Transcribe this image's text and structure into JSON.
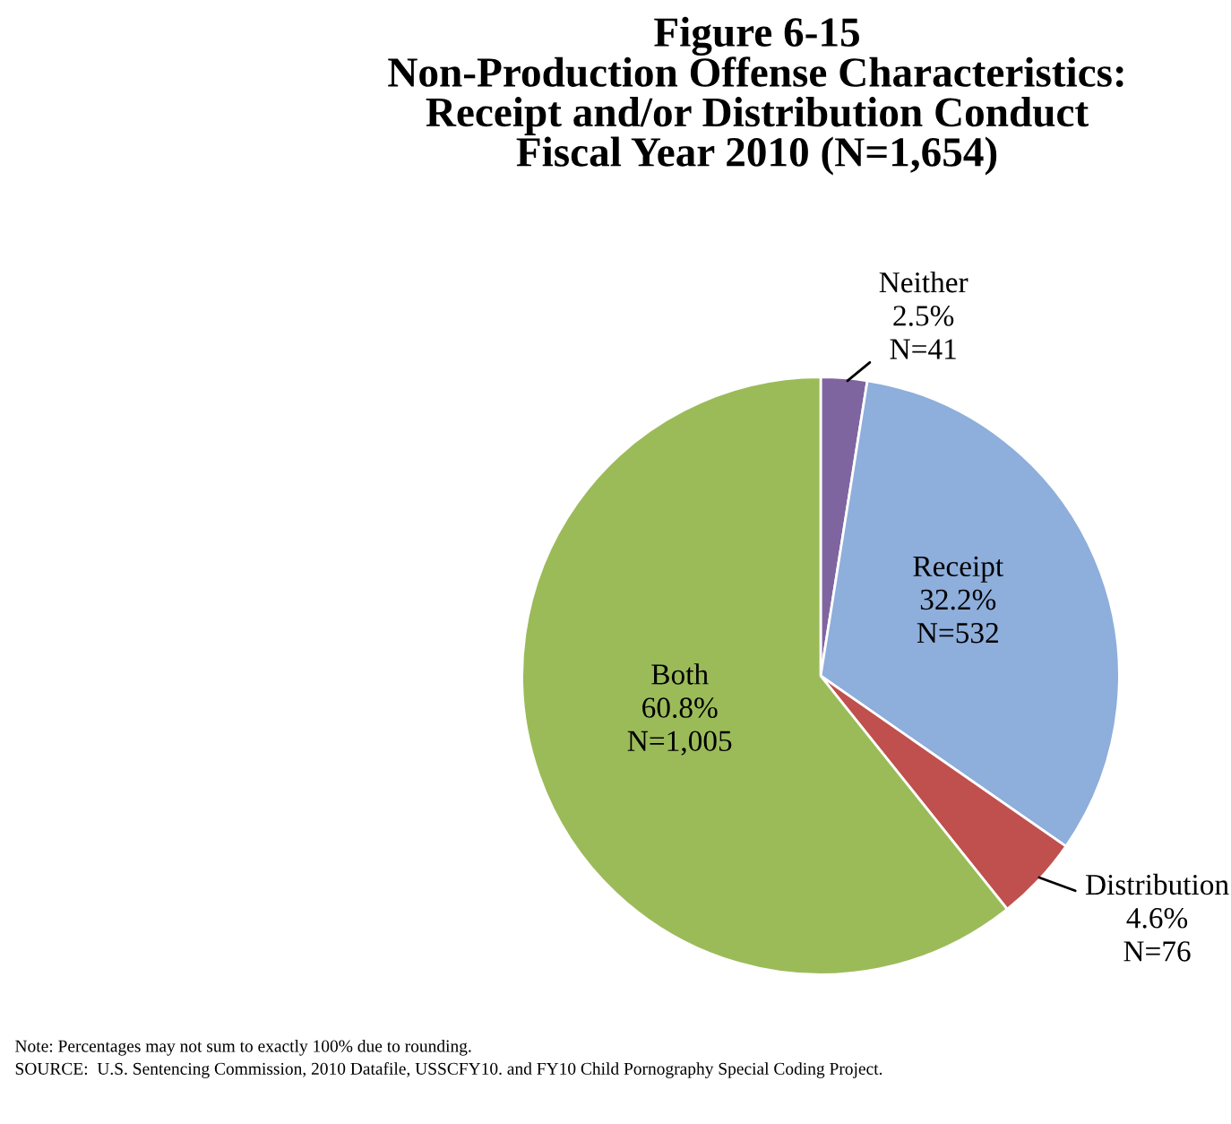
{
  "chart_data": {
    "type": "pie",
    "title": "Figure 6-15\nNon-Production Offense Characteristics:\nReceipt and/or Distribution Conduct\nFiscal Year 2010 (N=1,654)",
    "categories": [
      "Neither",
      "Receipt",
      "Distribution",
      "Both"
    ],
    "values": [
      2.5,
      32.2,
      4.6,
      60.8
    ],
    "colors": [
      "#7f65a0",
      "#8eaedb",
      "#c0504d",
      "#9bbb59"
    ],
    "value_labels": [
      "2.5%\nN=41",
      "32.2%\nN=532",
      "4.6%\nN=76",
      "60.8%\nN=1,005"
    ],
    "annotations": [
      "Note: Percentages may not sum to exactly 100% due to rounding.",
      "SOURCE:  U.S. Sentencing Commission, 2010 Datafile, USSCFY10. and FY10 Child Pornography Special Coding Project."
    ]
  }
}
